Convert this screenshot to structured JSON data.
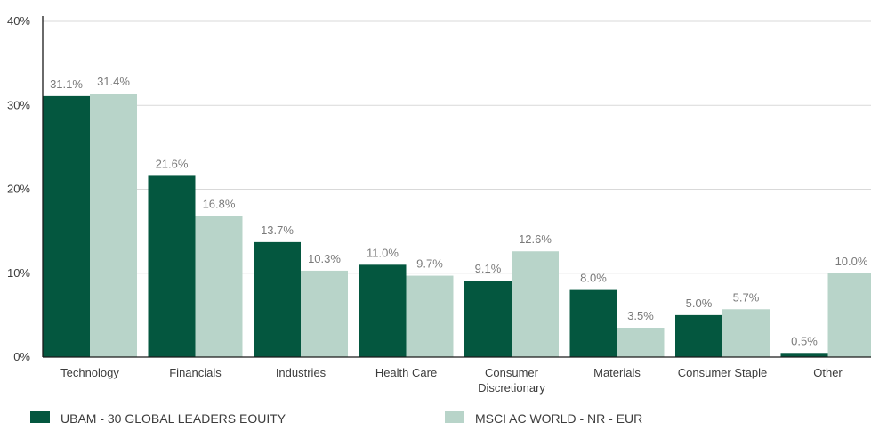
{
  "chart_data": {
    "type": "bar",
    "categories": [
      "Technology",
      "Financials",
      "Industries",
      "Health Care",
      "Consumer Discretionary",
      "Materials",
      "Consumer Staple",
      "Other"
    ],
    "category_lines": [
      [
        "Technology"
      ],
      [
        "Financials"
      ],
      [
        "Industries"
      ],
      [
        "Health Care"
      ],
      [
        "Consumer",
        "Discretionary"
      ],
      [
        "Materials"
      ],
      [
        "Consumer Staple"
      ],
      [
        "Other"
      ]
    ],
    "series": [
      {
        "name": "UBAM - 30 GLOBAL LEADERS EQUITY",
        "color": "#04573f",
        "values": [
          31.1,
          21.6,
          13.7,
          11.0,
          9.1,
          8.0,
          5.0,
          0.5
        ],
        "labels": [
          "31.1%",
          "21.6%",
          "13.7%",
          "11.0%",
          "9.1%",
          "8.0%",
          "5.0%",
          "0.5%"
        ]
      },
      {
        "name": "MSCI AC WORLD - NR - EUR",
        "color": "#b8d4c9",
        "values": [
          31.4,
          16.8,
          10.3,
          9.7,
          12.6,
          3.5,
          5.7,
          10.0
        ],
        "labels": [
          "31.4%",
          "16.8%",
          "10.3%",
          "9.7%",
          "12.6%",
          "3.5%",
          "5.7%",
          "10.0%"
        ]
      }
    ],
    "ylim": [
      0,
      40
    ],
    "yticks": [
      0,
      10,
      20,
      30,
      40
    ],
    "ytick_labels": [
      "0%",
      "10%",
      "20%",
      "30%",
      "40%"
    ],
    "grid": true,
    "gridline_color": "#d9d9d9",
    "axis_color": "#1a1a1a",
    "legend_position": "bottom"
  }
}
